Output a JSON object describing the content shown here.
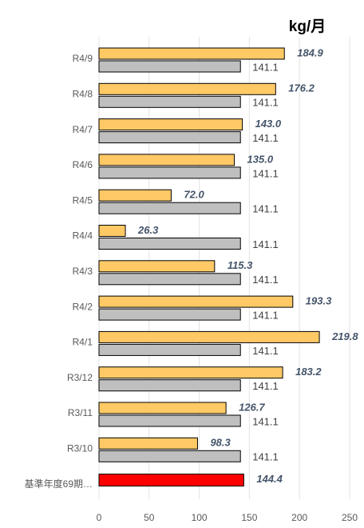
{
  "chart_data": {
    "type": "hbar",
    "title": "kg/月",
    "categories": [
      "R4/9",
      "R4/8",
      "R4/7",
      "R4/6",
      "R4/5",
      "R4/4",
      "R4/3",
      "R4/2",
      "R4/1",
      "R3/12",
      "R3/11",
      "R3/10",
      "基準年度69期…"
    ],
    "series": [
      {
        "color": "#ffc966",
        "values": [
          184.9,
          176.2,
          143.0,
          135.0,
          72.0,
          26.3,
          115.3,
          193.3,
          219.8,
          183.2,
          126.7,
          98.3,
          null
        ],
        "value_labels": [
          "184.9",
          "176.2",
          "143.0",
          "135.0",
          "72.0",
          "26.3",
          "115.3",
          "193.3",
          "219.8",
          "183.2",
          "126.7",
          "98.3",
          null
        ]
      },
      {
        "color": "#bfbfbf",
        "values": [
          141.1,
          141.1,
          141.1,
          141.1,
          141.1,
          141.1,
          141.1,
          141.1,
          141.1,
          141.1,
          141.1,
          141.1,
          null
        ]
      },
      {
        "color": "#ff0000",
        "values": [
          null,
          null,
          null,
          null,
          null,
          null,
          null,
          null,
          null,
          null,
          null,
          null,
          144.4
        ]
      }
    ],
    "xlim": [
      0,
      250
    ],
    "xticks": [
      0,
      50,
      100,
      150,
      200,
      250
    ],
    "grid": true
  }
}
